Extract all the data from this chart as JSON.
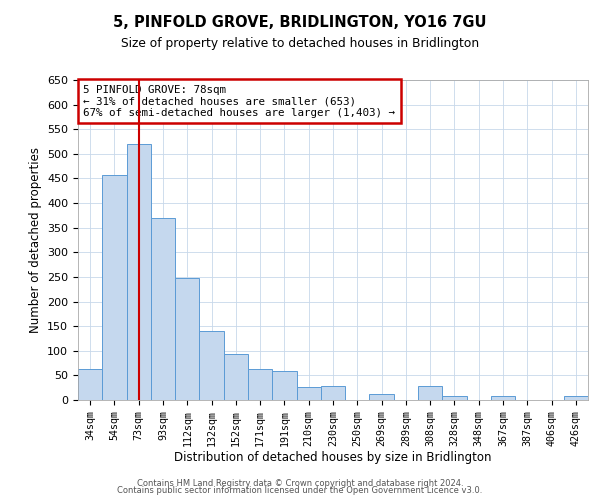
{
  "title": "5, PINFOLD GROVE, BRIDLINGTON, YO16 7GU",
  "subtitle": "Size of property relative to detached houses in Bridlington",
  "xlabel": "Distribution of detached houses by size in Bridlington",
  "ylabel": "Number of detached properties",
  "bar_labels": [
    "34sqm",
    "54sqm",
    "73sqm",
    "93sqm",
    "112sqm",
    "132sqm",
    "152sqm",
    "171sqm",
    "191sqm",
    "210sqm",
    "230sqm",
    "250sqm",
    "269sqm",
    "289sqm",
    "308sqm",
    "328sqm",
    "348sqm",
    "367sqm",
    "387sqm",
    "406sqm",
    "426sqm"
  ],
  "bar_values": [
    62,
    458,
    520,
    370,
    248,
    140,
    93,
    62,
    58,
    27,
    28,
    0,
    12,
    0,
    28,
    8,
    0,
    8,
    0,
    0,
    8
  ],
  "bar_color": "#c5d8ee",
  "bar_edge_color": "#5b9bd5",
  "ylim": [
    0,
    650
  ],
  "yticks": [
    0,
    50,
    100,
    150,
    200,
    250,
    300,
    350,
    400,
    450,
    500,
    550,
    600,
    650
  ],
  "vline_x": 2,
  "vline_color": "#cc0000",
  "annotation_title": "5 PINFOLD GROVE: 78sqm",
  "annotation_line1": "← 31% of detached houses are smaller (653)",
  "annotation_line2": "67% of semi-detached houses are larger (1,403) →",
  "annotation_box_color": "#ffffff",
  "annotation_box_edge_color": "#cc0000",
  "footer_line1": "Contains HM Land Registry data © Crown copyright and database right 2024.",
  "footer_line2": "Contains public sector information licensed under the Open Government Licence v3.0.",
  "background_color": "#ffffff",
  "grid_color": "#c8d8ea"
}
